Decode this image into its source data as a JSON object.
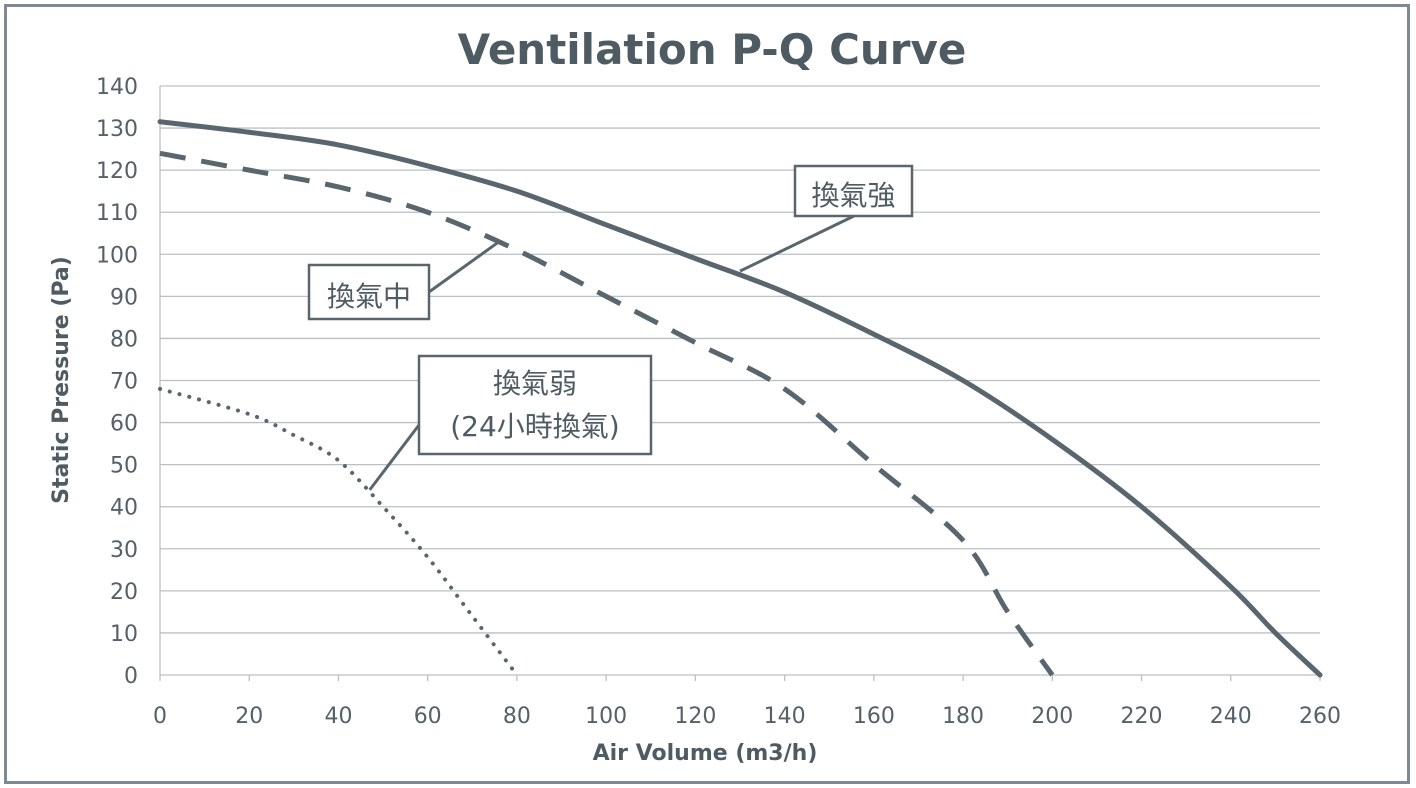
{
  "chart_data": {
    "type": "line",
    "title": "Ventilation P-Q Curve",
    "xlabel": "Air Volume  (m3/h)",
    "ylabel": "Static Pressure  (Pa)",
    "xlim": [
      0,
      260
    ],
    "ylim": [
      0,
      140
    ],
    "xticks": [
      0,
      20,
      40,
      60,
      80,
      100,
      120,
      140,
      160,
      180,
      200,
      220,
      240,
      260
    ],
    "yticks": [
      0,
      10,
      20,
      30,
      40,
      50,
      60,
      70,
      80,
      90,
      100,
      110,
      120,
      130,
      140
    ],
    "grid": "horizontal",
    "line_color": "#5a666e",
    "series": [
      {
        "name": "換氣強",
        "style": "solid",
        "x": [
          0,
          20,
          40,
          60,
          80,
          100,
          120,
          140,
          160,
          180,
          200,
          220,
          240,
          250,
          260
        ],
        "y": [
          131.5,
          129,
          126,
          121,
          115,
          107,
          99,
          91,
          81,
          70,
          56,
          40,
          21,
          10,
          0
        ]
      },
      {
        "name": "換氣中",
        "style": "dashed",
        "x": [
          0,
          20,
          40,
          60,
          80,
          100,
          120,
          140,
          160,
          180,
          190,
          200
        ],
        "y": [
          124,
          120,
          116,
          110,
          101,
          90,
          79,
          68,
          50,
          32,
          15,
          0
        ]
      },
      {
        "name": "換氣弱\n(24小時換氣)",
        "style": "dotted",
        "x": [
          0,
          20,
          30,
          40,
          50,
          60,
          70,
          80
        ],
        "y": [
          68,
          62,
          57,
          51,
          40,
          28,
          14,
          0
        ]
      }
    ],
    "annotations": [
      {
        "lines": [
          "換氣強"
        ]
      },
      {
        "lines": [
          "換氣中"
        ]
      },
      {
        "lines": [
          "換氣弱",
          "(24小時換氣)"
        ]
      }
    ]
  }
}
